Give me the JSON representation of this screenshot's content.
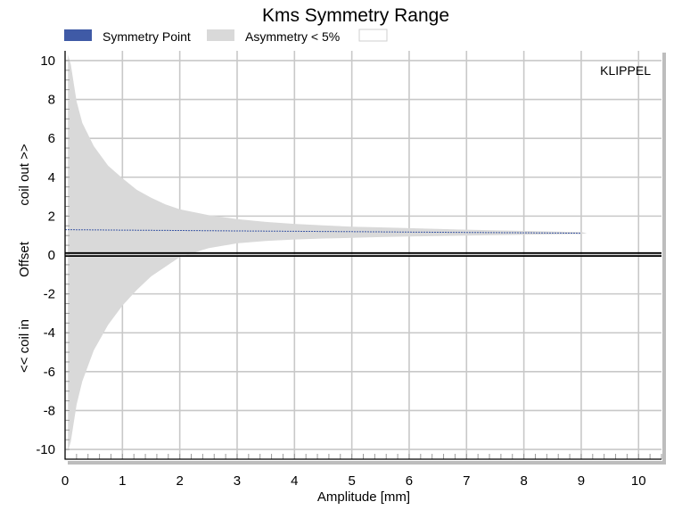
{
  "chart_data": {
    "type": "area",
    "title": "Kms Symmetry Range",
    "xlabel": "Amplitude [mm]",
    "ylabel_parts": [
      "<< coil in",
      "Offset",
      "coil out >>"
    ],
    "xlim": [
      0,
      10.4
    ],
    "ylim": [
      -10.5,
      10.5
    ],
    "x_ticks": [
      0,
      1,
      2,
      3,
      4,
      5,
      6,
      7,
      8,
      9,
      10
    ],
    "y_ticks": [
      -10,
      -8,
      -6,
      -4,
      -2,
      0,
      2,
      4,
      6,
      8,
      10
    ],
    "grid": true,
    "legend": {
      "placement": "top",
      "entries": [
        {
          "label": "Symmetry Point",
          "color": "#3f5aa6"
        },
        {
          "label": "Asymmetry < 5%",
          "color": "#d9d9d9"
        },
        {
          "label": "",
          "color": "#ffffff"
        }
      ]
    },
    "annotation": "KLIPPEL",
    "series": [
      {
        "name": "Symmetry Point",
        "x": [
          0,
          1,
          2,
          3,
          4,
          5,
          6,
          7,
          8,
          9
        ],
        "y": [
          1.3,
          1.28,
          1.26,
          1.24,
          1.22,
          1.2,
          1.18,
          1.16,
          1.14,
          1.12
        ]
      },
      {
        "name": "Asymmetry < 5%",
        "x": [
          0.05,
          0.1,
          0.2,
          0.3,
          0.5,
          0.75,
          1,
          1.25,
          1.5,
          1.75,
          2,
          2.5,
          3,
          3.5,
          4,
          4.5,
          5,
          5.5,
          6,
          7,
          8,
          9,
          9.1
        ],
        "upper": [
          10.3,
          9.8,
          7.9,
          6.8,
          5.6,
          4.6,
          3.95,
          3.35,
          2.95,
          2.6,
          2.35,
          2.05,
          1.85,
          1.7,
          1.6,
          1.52,
          1.46,
          1.42,
          1.38,
          1.3,
          1.24,
          1.18,
          1.12
        ],
        "lower": [
          -10.1,
          -9.6,
          -7.7,
          -6.5,
          -4.9,
          -3.6,
          -2.6,
          -1.8,
          -1.1,
          -0.6,
          -0.1,
          0.35,
          0.6,
          0.72,
          0.8,
          0.85,
          0.88,
          0.92,
          0.95,
          1.0,
          1.04,
          1.08,
          1.12
        ]
      }
    ],
    "reference_lines": [
      0.1,
      -0.05
    ]
  }
}
